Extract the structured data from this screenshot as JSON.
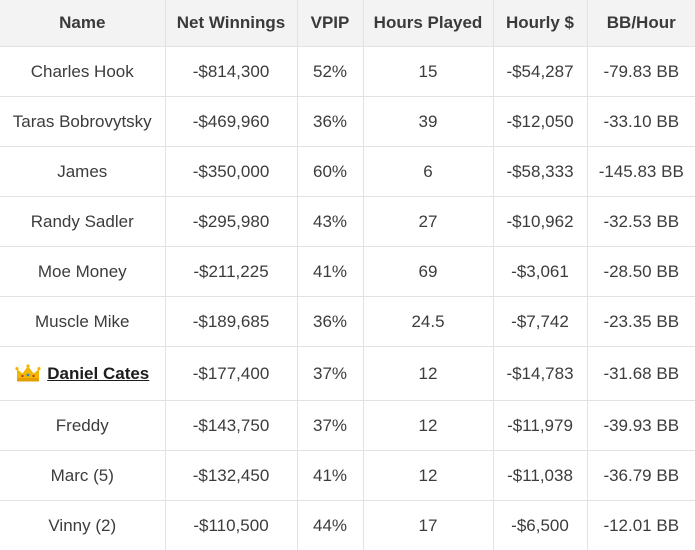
{
  "table": {
    "headers": [
      "Name",
      "Net Winnings",
      "VPIP",
      "Hours Played",
      "Hourly $",
      "BB/Hour"
    ],
    "rows": [
      {
        "name": "Charles Hook",
        "net": "-$814,300",
        "vpip": "52%",
        "hours": "15",
        "hourly": "-$54,287",
        "bb": "-79.83 BB"
      },
      {
        "name": "Taras Bobrovytsky",
        "net": "-$469,960",
        "vpip": "36%",
        "hours": "39",
        "hourly": "-$12,050",
        "bb": "-33.10 BB"
      },
      {
        "name": "James",
        "net": "-$350,000",
        "vpip": "60%",
        "hours": "6",
        "hourly": "-$58,333",
        "bb": "-145.83 BB"
      },
      {
        "name": "Randy Sadler",
        "net": "-$295,980",
        "vpip": "43%",
        "hours": "27",
        "hourly": "-$10,962",
        "bb": "-32.53 BB"
      },
      {
        "name": "Moe Money",
        "net": "-$211,225",
        "vpip": "41%",
        "hours": "69",
        "hourly": "-$3,061",
        "bb": "-28.50 BB"
      },
      {
        "name": "Muscle Mike",
        "net": "-$189,685",
        "vpip": "36%",
        "hours": "24.5",
        "hourly": "-$7,742",
        "bb": "-23.35 BB"
      },
      {
        "name": "Daniel Cates",
        "net": "-$177,400",
        "vpip": "37%",
        "hours": "12",
        "hourly": "-$14,783",
        "bb": "-31.68 BB",
        "icon": "crown-icon",
        "link": true
      },
      {
        "name": "Freddy",
        "net": "-$143,750",
        "vpip": "37%",
        "hours": "12",
        "hourly": "-$11,979",
        "bb": "-39.93 BB"
      },
      {
        "name": "Marc (5)",
        "net": "-$132,450",
        "vpip": "41%",
        "hours": "12",
        "hourly": "-$11,038",
        "bb": "-36.79 BB"
      },
      {
        "name": "Vinny (2)",
        "net": "-$110,500",
        "vpip": "44%",
        "hours": "17",
        "hourly": "-$6,500",
        "bb": "-12.01 BB"
      }
    ]
  },
  "colors": {
    "header_bg": "#f3f3f3",
    "border": "#e2e2e2",
    "text": "#3c3c3c",
    "crown_gold": "#f2b705"
  }
}
